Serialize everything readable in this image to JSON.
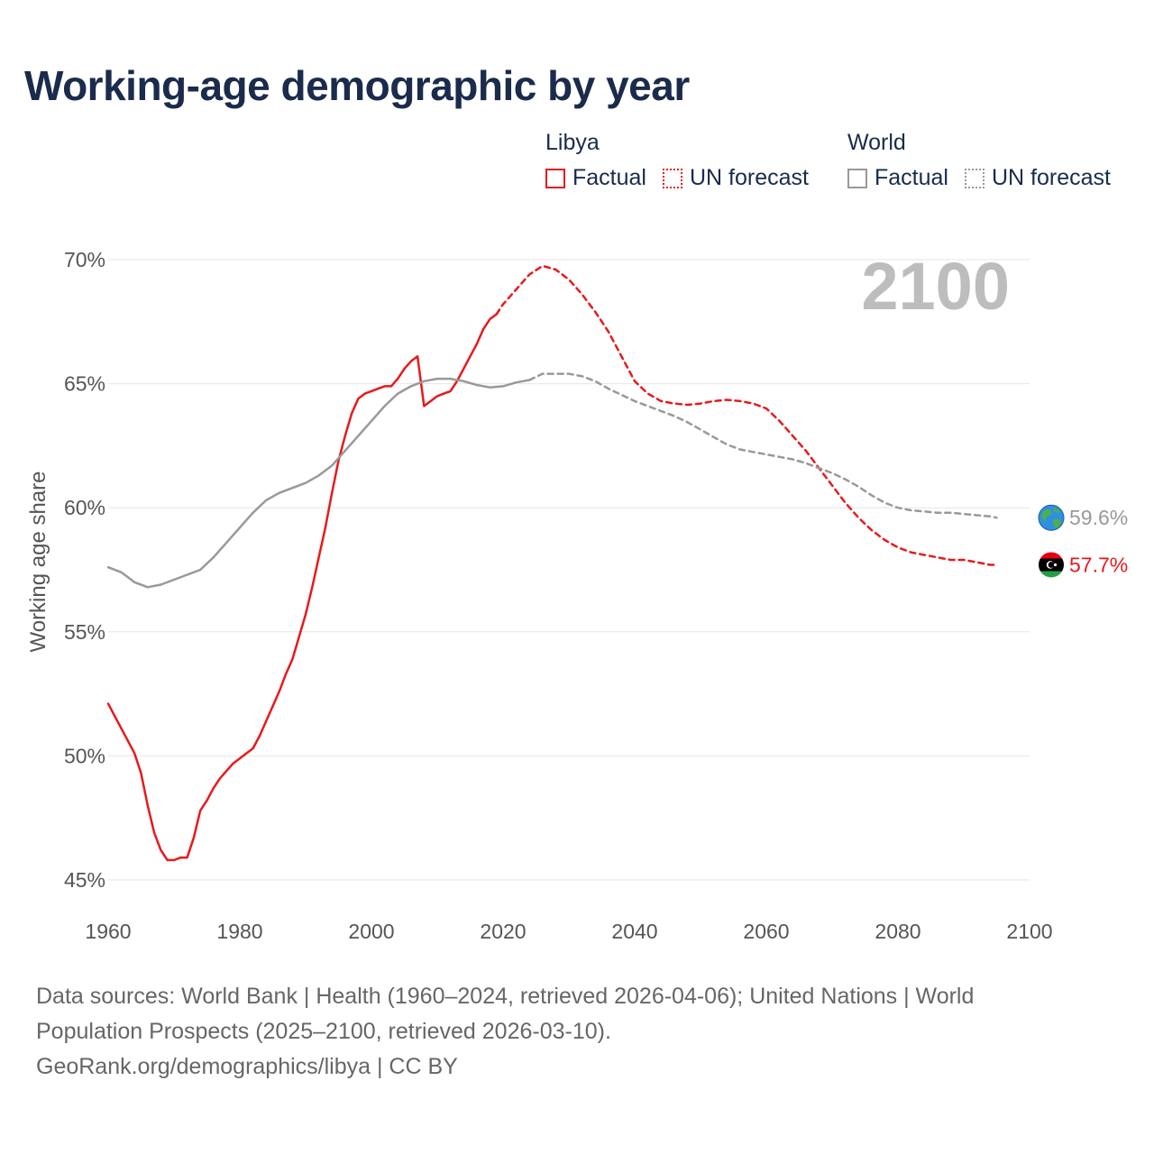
{
  "colors": {
    "libya": "#e8191c",
    "world": "#999999",
    "title": "#1a2b4c",
    "grid": "#e6e6e6"
  },
  "chart_data": {
    "type": "line",
    "title": "Working-age demographic by year",
    "xlabel": "",
    "ylabel": "Working age share",
    "xlim": [
      1960,
      2100
    ],
    "ylim": [
      45,
      70
    ],
    "x_ticks": [
      1960,
      1980,
      2000,
      2020,
      2040,
      2060,
      2080,
      2100
    ],
    "y_ticks": [
      {
        "value": 45,
        "label": "45%"
      },
      {
        "value": 50,
        "label": "50%"
      },
      {
        "value": 55,
        "label": "55%"
      },
      {
        "value": 60,
        "label": "60%"
      },
      {
        "value": 65,
        "label": "65%"
      },
      {
        "value": 70,
        "label": "70%"
      }
    ],
    "year_overlay": "2100",
    "legend": {
      "groups": [
        {
          "name": "Libya",
          "items": [
            "Factual",
            "UN forecast"
          ]
        },
        {
          "name": "World",
          "items": [
            "Factual",
            "UN forecast"
          ]
        }
      ]
    },
    "series": [
      {
        "name": "Libya",
        "segment": "Factual",
        "style": "solid",
        "points": [
          [
            1960,
            52.1
          ],
          [
            1962,
            51.1
          ],
          [
            1964,
            50.1
          ],
          [
            1965,
            49.3
          ],
          [
            1966,
            48.0
          ],
          [
            1967,
            46.9
          ],
          [
            1968,
            46.2
          ],
          [
            1969,
            45.8
          ],
          [
            1970,
            45.8
          ],
          [
            1971,
            45.9
          ],
          [
            1972,
            45.9
          ],
          [
            1973,
            46.7
          ],
          [
            1974,
            47.8
          ],
          [
            1975,
            48.2
          ],
          [
            1976,
            48.7
          ],
          [
            1977,
            49.1
          ],
          [
            1978,
            49.4
          ],
          [
            1979,
            49.7
          ],
          [
            1980,
            49.9
          ],
          [
            1981,
            50.1
          ],
          [
            1982,
            50.3
          ],
          [
            1983,
            50.8
          ],
          [
            1984,
            51.4
          ],
          [
            1985,
            52.0
          ],
          [
            1986,
            52.6
          ],
          [
            1987,
            53.3
          ],
          [
            1988,
            53.9
          ],
          [
            1989,
            54.8
          ],
          [
            1990,
            55.7
          ],
          [
            1991,
            56.8
          ],
          [
            1992,
            58.0
          ],
          [
            1993,
            59.2
          ],
          [
            1994,
            60.6
          ],
          [
            1995,
            61.9
          ],
          [
            1996,
            62.9
          ],
          [
            1997,
            63.8
          ],
          [
            1998,
            64.4
          ],
          [
            1999,
            64.6
          ],
          [
            2000,
            64.7
          ],
          [
            2001,
            64.8
          ],
          [
            2002,
            64.9
          ],
          [
            2003,
            64.9
          ],
          [
            2004,
            65.2
          ],
          [
            2005,
            65.6
          ],
          [
            2006,
            65.9
          ],
          [
            2007,
            66.1
          ],
          [
            2008,
            64.1
          ],
          [
            2009,
            64.3
          ],
          [
            2010,
            64.5
          ],
          [
            2011,
            64.6
          ],
          [
            2012,
            64.7
          ],
          [
            2013,
            65.1
          ],
          [
            2014,
            65.6
          ],
          [
            2015,
            66.1
          ],
          [
            2016,
            66.6
          ],
          [
            2017,
            67.2
          ],
          [
            2018,
            67.6
          ],
          [
            2019,
            67.8
          ]
        ]
      },
      {
        "name": "Libya",
        "segment": "UN forecast",
        "style": "dashed",
        "points": [
          [
            2019,
            67.8
          ],
          [
            2020,
            68.2
          ],
          [
            2022,
            68.8
          ],
          [
            2024,
            69.4
          ],
          [
            2026,
            69.75
          ],
          [
            2028,
            69.6
          ],
          [
            2030,
            69.2
          ],
          [
            2032,
            68.6
          ],
          [
            2034,
            67.9
          ],
          [
            2036,
            67.1
          ],
          [
            2038,
            66.1
          ],
          [
            2040,
            65.1
          ],
          [
            2042,
            64.6
          ],
          [
            2044,
            64.3
          ],
          [
            2046,
            64.2
          ],
          [
            2048,
            64.15
          ],
          [
            2050,
            64.2
          ],
          [
            2052,
            64.3
          ],
          [
            2054,
            64.35
          ],
          [
            2056,
            64.3
          ],
          [
            2058,
            64.2
          ],
          [
            2060,
            64.0
          ],
          [
            2062,
            63.5
          ],
          [
            2064,
            62.9
          ],
          [
            2066,
            62.3
          ],
          [
            2068,
            61.6
          ],
          [
            2070,
            60.9
          ],
          [
            2072,
            60.2
          ],
          [
            2074,
            59.6
          ],
          [
            2076,
            59.1
          ],
          [
            2078,
            58.7
          ],
          [
            2080,
            58.4
          ],
          [
            2082,
            58.2
          ],
          [
            2084,
            58.1
          ],
          [
            2086,
            58.0
          ],
          [
            2088,
            57.9
          ],
          [
            2090,
            57.9
          ],
          [
            2092,
            57.8
          ],
          [
            2094,
            57.7
          ],
          [
            2095,
            57.7
          ]
        ]
      },
      {
        "name": "World",
        "segment": "Factual",
        "style": "solid",
        "points": [
          [
            1960,
            57.6
          ],
          [
            1962,
            57.4
          ],
          [
            1964,
            57.0
          ],
          [
            1966,
            56.8
          ],
          [
            1968,
            56.9
          ],
          [
            1970,
            57.1
          ],
          [
            1972,
            57.3
          ],
          [
            1974,
            57.5
          ],
          [
            1976,
            58.0
          ],
          [
            1978,
            58.6
          ],
          [
            1980,
            59.2
          ],
          [
            1982,
            59.8
          ],
          [
            1984,
            60.3
          ],
          [
            1986,
            60.6
          ],
          [
            1988,
            60.8
          ],
          [
            1990,
            61.0
          ],
          [
            1992,
            61.3
          ],
          [
            1994,
            61.7
          ],
          [
            1996,
            62.3
          ],
          [
            1998,
            62.9
          ],
          [
            2000,
            63.5
          ],
          [
            2002,
            64.1
          ],
          [
            2004,
            64.6
          ],
          [
            2006,
            64.9
          ],
          [
            2008,
            65.1
          ],
          [
            2010,
            65.2
          ],
          [
            2012,
            65.2
          ],
          [
            2014,
            65.1
          ],
          [
            2016,
            64.95
          ],
          [
            2018,
            64.85
          ],
          [
            2020,
            64.9
          ],
          [
            2022,
            65.05
          ],
          [
            2024,
            65.15
          ]
        ]
      },
      {
        "name": "World",
        "segment": "UN forecast",
        "style": "dashed",
        "points": [
          [
            2024,
            65.15
          ],
          [
            2026,
            65.4
          ],
          [
            2028,
            65.4
          ],
          [
            2030,
            65.4
          ],
          [
            2032,
            65.3
          ],
          [
            2034,
            65.1
          ],
          [
            2036,
            64.8
          ],
          [
            2038,
            64.55
          ],
          [
            2040,
            64.3
          ],
          [
            2042,
            64.1
          ],
          [
            2044,
            63.9
          ],
          [
            2046,
            63.7
          ],
          [
            2048,
            63.45
          ],
          [
            2050,
            63.15
          ],
          [
            2052,
            62.85
          ],
          [
            2054,
            62.55
          ],
          [
            2056,
            62.35
          ],
          [
            2058,
            62.25
          ],
          [
            2060,
            62.15
          ],
          [
            2062,
            62.05
          ],
          [
            2064,
            61.95
          ],
          [
            2066,
            61.8
          ],
          [
            2068,
            61.6
          ],
          [
            2070,
            61.4
          ],
          [
            2072,
            61.15
          ],
          [
            2074,
            60.85
          ],
          [
            2076,
            60.5
          ],
          [
            2078,
            60.2
          ],
          [
            2080,
            60.0
          ],
          [
            2082,
            59.9
          ],
          [
            2084,
            59.85
          ],
          [
            2086,
            59.8
          ],
          [
            2088,
            59.8
          ],
          [
            2090,
            59.75
          ],
          [
            2092,
            59.7
          ],
          [
            2094,
            59.65
          ],
          [
            2095,
            59.6
          ]
        ]
      }
    ],
    "end_labels": [
      {
        "series": "World",
        "value": 59.6,
        "label": "59.6%",
        "marker": "globe-icon"
      },
      {
        "series": "Libya",
        "value": 57.7,
        "label": "57.7%",
        "marker": "libya-flag-icon"
      }
    ]
  },
  "footer": {
    "line1": "Data sources: World Bank | Health (1960–2024, retrieved 2026-04-06); United Nations | World",
    "line2": "Population Prospects (2025–2100, retrieved 2026-03-10).",
    "line3": "GeoRank.org/demographics/libya | CC BY"
  }
}
